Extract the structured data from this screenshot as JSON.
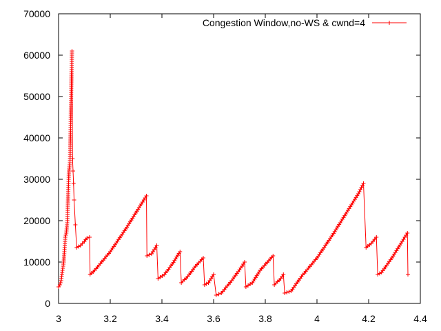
{
  "chart_data": {
    "type": "line",
    "title": "",
    "xlabel": "",
    "ylabel": "",
    "xlim": [
      3,
      4.4
    ],
    "ylim": [
      0,
      70000
    ],
    "x_ticks": [
      3,
      3.2,
      3.4,
      3.6,
      3.8,
      4,
      4.2,
      4.4
    ],
    "x_tick_labels": [
      "3",
      "3.2",
      "3.4",
      "3.6",
      "3.8",
      "4",
      "4.2",
      "4.4"
    ],
    "y_ticks": [
      0,
      10000,
      20000,
      30000,
      40000,
      50000,
      60000,
      70000
    ],
    "y_tick_labels": [
      "0",
      "10000",
      "20000",
      "30000",
      "40000",
      "50000",
      "60000",
      "70000"
    ],
    "grid": false,
    "legend_position": "top-right",
    "series": [
      {
        "name": "Congestion Window,no-WS & cwnd=4",
        "color": "#ff0000",
        "marker": "plus",
        "points": [
          [
            3.0,
            4000
          ],
          [
            3.005,
            4500
          ],
          [
            3.01,
            5500
          ],
          [
            3.015,
            8000
          ],
          [
            3.02,
            10000
          ],
          [
            3.022,
            12000
          ],
          [
            3.024,
            14000
          ],
          [
            3.026,
            16000
          ],
          [
            3.03,
            17000
          ],
          [
            3.034,
            20000
          ],
          [
            3.036,
            24000
          ],
          [
            3.038,
            28000
          ],
          [
            3.04,
            32000
          ],
          [
            3.044,
            34000
          ],
          [
            3.046,
            40000
          ],
          [
            3.048,
            48000
          ],
          [
            3.05,
            55000
          ],
          [
            3.052,
            61000
          ],
          [
            3.054,
            35000
          ],
          [
            3.056,
            32000
          ],
          [
            3.058,
            29000
          ],
          [
            3.06,
            25000
          ],
          [
            3.065,
            19000
          ],
          [
            3.07,
            13500
          ],
          [
            3.085,
            14000
          ],
          [
            3.1,
            15000
          ],
          [
            3.11,
            15800
          ],
          [
            3.12,
            16000
          ],
          [
            3.122,
            7000
          ],
          [
            3.14,
            8000
          ],
          [
            3.2,
            12500
          ],
          [
            3.26,
            18000
          ],
          [
            3.32,
            24000
          ],
          [
            3.34,
            26000
          ],
          [
            3.342,
            11500
          ],
          [
            3.36,
            12000
          ],
          [
            3.38,
            14000
          ],
          [
            3.385,
            6000
          ],
          [
            3.41,
            7000
          ],
          [
            3.44,
            9500
          ],
          [
            3.47,
            12500
          ],
          [
            3.475,
            5000
          ],
          [
            3.5,
            6500
          ],
          [
            3.53,
            9000
          ],
          [
            3.56,
            11000
          ],
          [
            3.565,
            4500
          ],
          [
            3.58,
            5000
          ],
          [
            3.6,
            7000
          ],
          [
            3.61,
            2000
          ],
          [
            3.63,
            2500
          ],
          [
            3.67,
            5500
          ],
          [
            3.71,
            9000
          ],
          [
            3.72,
            10000
          ],
          [
            3.725,
            4000
          ],
          [
            3.75,
            5000
          ],
          [
            3.78,
            8000
          ],
          [
            3.83,
            11500
          ],
          [
            3.835,
            4500
          ],
          [
            3.86,
            6000
          ],
          [
            3.87,
            7000
          ],
          [
            3.875,
            2500
          ],
          [
            3.9,
            3000
          ],
          [
            3.94,
            6500
          ],
          [
            4.0,
            11000
          ],
          [
            4.06,
            16500
          ],
          [
            4.12,
            22500
          ],
          [
            4.16,
            26500
          ],
          [
            4.18,
            29000
          ],
          [
            4.19,
            13500
          ],
          [
            4.21,
            14500
          ],
          [
            4.23,
            16000
          ],
          [
            4.235,
            7000
          ],
          [
            4.25,
            7500
          ],
          [
            4.29,
            11000
          ],
          [
            4.33,
            15000
          ],
          [
            4.35,
            17000
          ],
          [
            4.352,
            7000
          ]
        ]
      }
    ]
  }
}
